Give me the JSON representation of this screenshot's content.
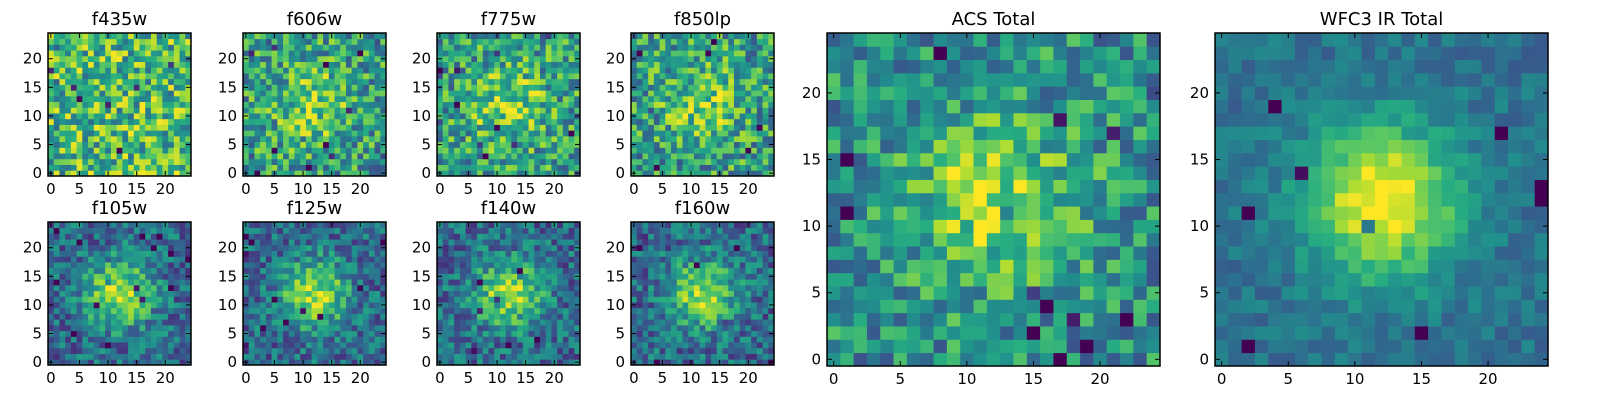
{
  "chart_data": {
    "type": "heatmap",
    "colormap": "viridis",
    "grid": false,
    "panels": [
      {
        "title": "f435w",
        "xlim": [
          -0.5,
          24.5
        ],
        "ylim": [
          -0.5,
          24.5
        ],
        "xticks": [
          "0",
          "5",
          "10",
          "15",
          "20"
        ],
        "yticks": [
          "0",
          "5",
          "10",
          "15",
          "20"
        ],
        "xtick_values": [
          0,
          5,
          10,
          15,
          20
        ],
        "ytick_values": [
          0,
          5,
          10,
          15,
          20
        ],
        "pattern": "noise"
      },
      {
        "title": "f606w",
        "xlim": [
          -0.5,
          24.5
        ],
        "ylim": [
          -0.5,
          24.5
        ],
        "xticks": [
          "0",
          "5",
          "10",
          "15",
          "20"
        ],
        "yticks": [
          "0",
          "5",
          "10",
          "15",
          "20"
        ],
        "xtick_values": [
          0,
          5,
          10,
          15,
          20
        ],
        "ytick_values": [
          0,
          5,
          10,
          15,
          20
        ],
        "pattern": "weak-source"
      },
      {
        "title": "f775w",
        "xlim": [
          -0.5,
          24.5
        ],
        "ylim": [
          -0.5,
          24.5
        ],
        "xticks": [
          "0",
          "5",
          "10",
          "15",
          "20"
        ],
        "yticks": [
          "0",
          "5",
          "10",
          "15",
          "20"
        ],
        "xtick_values": [
          0,
          5,
          10,
          15,
          20
        ],
        "ytick_values": [
          0,
          5,
          10,
          15,
          20
        ],
        "pattern": "weak-source"
      },
      {
        "title": "f850lp",
        "xlim": [
          -0.5,
          24.5
        ],
        "ylim": [
          -0.5,
          24.5
        ],
        "xticks": [
          "0",
          "5",
          "10",
          "15",
          "20"
        ],
        "yticks": [
          "0",
          "5",
          "10",
          "15",
          "20"
        ],
        "xtick_values": [
          0,
          5,
          10,
          15,
          20
        ],
        "ytick_values": [
          0,
          5,
          10,
          15,
          20
        ],
        "pattern": "weak-source"
      },
      {
        "title": "f105w",
        "xlim": [
          -0.5,
          24.5
        ],
        "ylim": [
          -0.5,
          24.5
        ],
        "xticks": [
          "0",
          "5",
          "10",
          "15",
          "20"
        ],
        "yticks": [
          "0",
          "5",
          "10",
          "15",
          "20"
        ],
        "xtick_values": [
          0,
          5,
          10,
          15,
          20
        ],
        "ytick_values": [
          0,
          5,
          10,
          15,
          20
        ],
        "pattern": "source"
      },
      {
        "title": "f125w",
        "xlim": [
          -0.5,
          24.5
        ],
        "ylim": [
          -0.5,
          24.5
        ],
        "xticks": [
          "0",
          "5",
          "10",
          "15",
          "20"
        ],
        "yticks": [
          "0",
          "5",
          "10",
          "15",
          "20"
        ],
        "xtick_values": [
          0,
          5,
          10,
          15,
          20
        ],
        "ytick_values": [
          0,
          5,
          10,
          15,
          20
        ],
        "pattern": "source"
      },
      {
        "title": "f140w",
        "xlim": [
          -0.5,
          24.5
        ],
        "ylim": [
          -0.5,
          24.5
        ],
        "xticks": [
          "0",
          "5",
          "10",
          "15",
          "20"
        ],
        "yticks": [
          "0",
          "5",
          "10",
          "15",
          "20"
        ],
        "xtick_values": [
          0,
          5,
          10,
          15,
          20
        ],
        "ytick_values": [
          0,
          5,
          10,
          15,
          20
        ],
        "pattern": "source"
      },
      {
        "title": "f160w",
        "xlim": [
          -0.5,
          24.5
        ],
        "ylim": [
          -0.5,
          24.5
        ],
        "xticks": [
          "0",
          "5",
          "10",
          "15",
          "20"
        ],
        "yticks": [
          "0",
          "5",
          "10",
          "15",
          "20"
        ],
        "xtick_values": [
          0,
          5,
          10,
          15,
          20
        ],
        "ytick_values": [
          0,
          5,
          10,
          15,
          20
        ],
        "pattern": "source"
      },
      {
        "title": "ACS Total",
        "xlim": [
          -0.5,
          24.5
        ],
        "ylim": [
          -0.5,
          24.5
        ],
        "xticks": [
          "0",
          "5",
          "10",
          "15",
          "20"
        ],
        "yticks": [
          "0",
          "5",
          "10",
          "15",
          "20"
        ],
        "xtick_values": [
          0,
          5,
          10,
          15,
          20
        ],
        "ytick_values": [
          0,
          5,
          10,
          15,
          20
        ],
        "pattern": "medium-source"
      },
      {
        "title": "WFC3 IR Total",
        "xlim": [
          -0.5,
          24.5
        ],
        "ylim": [
          -0.5,
          24.5
        ],
        "xticks": [
          "0",
          "5",
          "10",
          "15",
          "20"
        ],
        "yticks": [
          "0",
          "5",
          "10",
          "15",
          "20"
        ],
        "xtick_values": [
          0,
          5,
          10,
          15,
          20
        ],
        "ytick_values": [
          0,
          5,
          10,
          15,
          20
        ],
        "pattern": "strong-source"
      }
    ]
  }
}
